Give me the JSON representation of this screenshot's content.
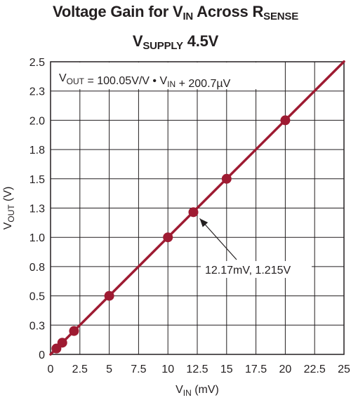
{
  "title": {
    "line1": {
      "main": "Voltage Gain for V",
      "sub1": "IN",
      "mid": " Across R",
      "sub2": "SENSE"
    },
    "line2": {
      "main": "V",
      "sub": "SUPPLY",
      "tail": " 4.5V"
    }
  },
  "equation": {
    "a": "V",
    "a_sub": "OUT",
    "b": " = 100.05V/V • V",
    "b_sub": "IN",
    "c": " + 200.7µV"
  },
  "colors": {
    "series": "#9e1b32",
    "grid": "#231f20",
    "text": "#231f20"
  },
  "chart_data": {
    "type": "line",
    "xlabel": {
      "main": "V",
      "sub": "IN",
      "unit": " (mV)"
    },
    "ylabel": {
      "main": "V",
      "sub": "OUT",
      "unit": " (V)"
    },
    "xlim": [
      0,
      25
    ],
    "ylim": [
      0,
      2.5
    ],
    "x_ticks": [
      "0",
      "2.5",
      "5",
      "7.5",
      "10",
      "12.5",
      "15",
      "17.5",
      "20",
      "22.5",
      "25"
    ],
    "x_tick_values": [
      0,
      2.5,
      5,
      7.5,
      10,
      12.5,
      15,
      17.5,
      20,
      22.5,
      25
    ],
    "y_ticks": [
      "0",
      "0.3",
      "0.5",
      "0.8",
      "1.0",
      "1.3",
      "1.5",
      "1.8",
      "2.0",
      "2.3",
      "2.5"
    ],
    "y_tick_values": [
      0,
      0.25,
      0.5,
      0.75,
      1.0,
      1.25,
      1.5,
      1.75,
      2.0,
      2.25,
      2.5
    ],
    "grid": true,
    "series": [
      {
        "fit_line": {
          "slope_per_mV": 0.10005,
          "intercept_V": 0.0002007,
          "x_range": [
            0,
            25
          ]
        },
        "points": [
          {
            "x": 0.5,
            "y": 0.05
          },
          {
            "x": 1.0,
            "y": 0.1
          },
          {
            "x": 2.0,
            "y": 0.2
          },
          {
            "x": 5.0,
            "y": 0.5
          },
          {
            "x": 10.0,
            "y": 1.0
          },
          {
            "x": 12.17,
            "y": 1.215
          },
          {
            "x": 15.0,
            "y": 1.5
          },
          {
            "x": 20.0,
            "y": 2.0
          }
        ]
      }
    ],
    "annotations": [
      {
        "text": "12.17mV, 1.215V",
        "x": 12.17,
        "y": 1.215
      }
    ]
  }
}
